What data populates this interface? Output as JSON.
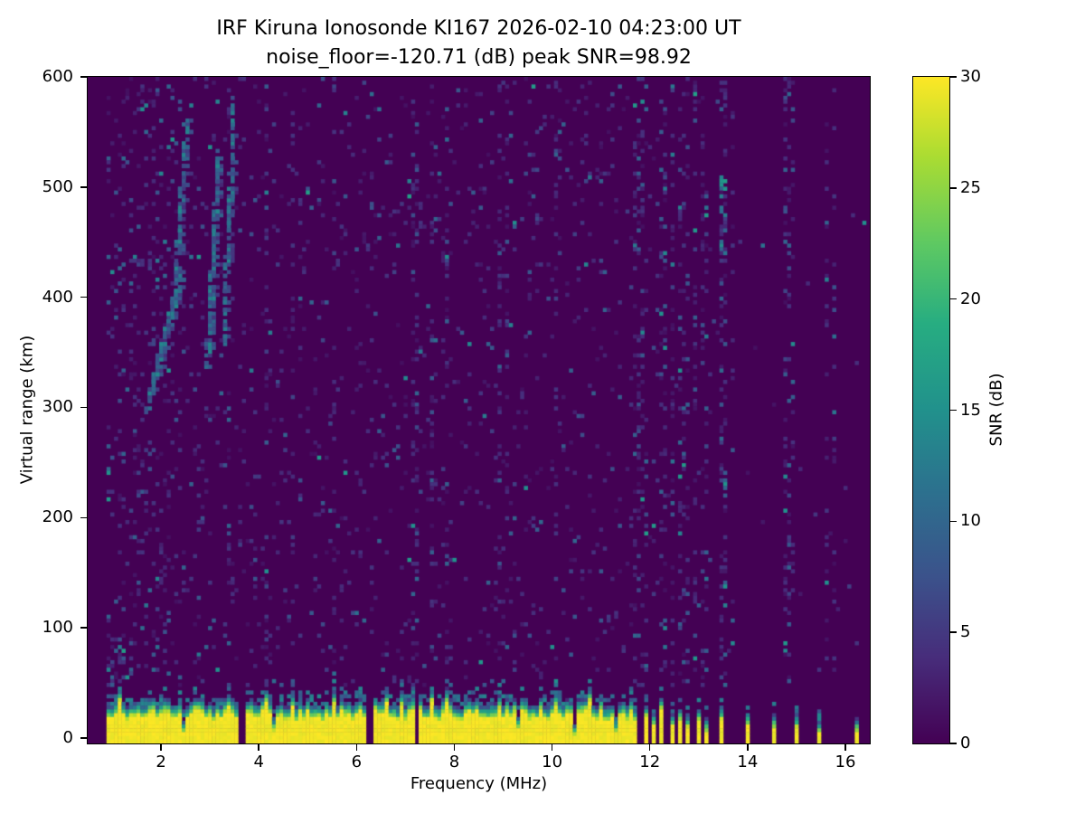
{
  "chart_data": {
    "type": "heatmap",
    "title": "IRF Kiruna Ionosonde KI167 2026-02-10 04:23:00  UT",
    "subtitle": "noise_floor=-120.71 (dB) peak SNR=98.92",
    "xlabel": "Frequency (MHz)",
    "ylabel": "Virtual range (km)",
    "colorbar_label": "SNR (dB)",
    "xlim": [
      0.5,
      16.5
    ],
    "ylim": [
      -5,
      600
    ],
    "clim": [
      0,
      30
    ],
    "xticks": [
      2,
      4,
      6,
      8,
      10,
      12,
      14,
      16
    ],
    "yticks": [
      0,
      100,
      200,
      300,
      400,
      500,
      600
    ],
    "colorbar_ticks": [
      0,
      5,
      10,
      15,
      20,
      25,
      30
    ],
    "colormap": "viridis",
    "colormap_stops": [
      [
        0,
        "#440154"
      ],
      [
        0.13,
        "#472d7b"
      ],
      [
        0.25,
        "#3b528b"
      ],
      [
        0.38,
        "#2c718e"
      ],
      [
        0.5,
        "#21918c"
      ],
      [
        0.63,
        "#27ad81"
      ],
      [
        0.75,
        "#5ec962"
      ],
      [
        0.88,
        "#aadc32"
      ],
      [
        1,
        "#fde725"
      ]
    ],
    "background_color": "#ffffff",
    "freq_coverage": [
      0.88,
      16.45
    ],
    "features": {
      "ground_band": {
        "freq_range": [
          0.88,
          11.62
        ],
        "solid_top_km": 30,
        "transition_top_km": 44,
        "snr_db": 30,
        "gaps": [
          [
            2.45,
            0.05,
            0.55
          ],
          [
            3.65,
            0.09,
            1.0
          ],
          [
            4.3,
            0.04,
            0.45
          ],
          [
            6.3,
            0.07,
            0.95
          ],
          [
            7.25,
            0.05,
            0.9
          ],
          [
            9.3,
            0.03,
            0.35
          ],
          [
            10.45,
            0.05,
            0.6
          ],
          [
            11.3,
            0.04,
            0.5
          ]
        ]
      },
      "band_strips": [
        [
          11.72,
          30
        ],
        [
          11.9,
          34
        ],
        [
          12.08,
          28
        ],
        [
          12.26,
          32
        ],
        [
          12.44,
          26
        ],
        [
          12.62,
          30
        ],
        [
          12.8,
          24
        ],
        [
          12.97,
          30
        ],
        [
          13.14,
          20
        ],
        [
          13.45,
          24
        ],
        [
          13.99,
          20
        ],
        [
          14.52,
          18
        ],
        [
          15.0,
          20
        ],
        [
          15.45,
          16
        ],
        [
          16.2,
          18
        ]
      ],
      "echo_traces": [
        [
          1.72,
          2.42,
          300,
          420,
          0.7
        ],
        [
          2.3,
          2.52,
          418,
          560,
          0.55
        ],
        [
          2.95,
          3.18,
          340,
          530,
          0.9
        ],
        [
          3.28,
          3.5,
          355,
          575,
          0.75
        ]
      ],
      "interference_columns_mhz": [
        7.2,
        11.8,
        12.3,
        12.9,
        13.5,
        14.8
      ],
      "teal_cluster": {
        "freq": 13.5,
        "range_km": [
          430,
          510
        ]
      },
      "noise_speckle_base_prob": 0.05
    }
  }
}
